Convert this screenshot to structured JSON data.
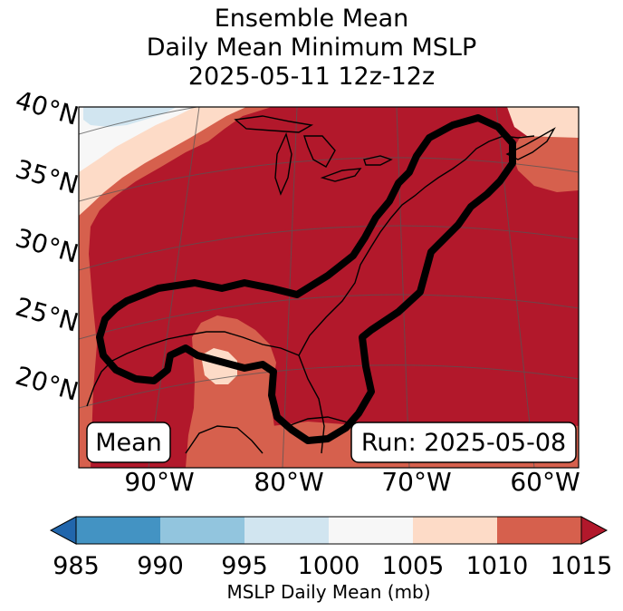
{
  "title": {
    "line1": "Ensemble Mean",
    "line2": "Daily Mean Minimum MSLP",
    "line3": "2025-05-11 12z-12z"
  },
  "map": {
    "lat_labels": [
      "40°N",
      "35°N",
      "30°N",
      "25°N",
      "20°N"
    ],
    "lon_labels": [
      "90°W",
      "80°W",
      "70°W",
      "60°W"
    ],
    "mean_box": "Mean",
    "run_box": "Run: 2025-05-08",
    "contour": "ensemble mean low-pressure track outline"
  },
  "colorbar": {
    "label": "MSLP Daily Mean (mb)",
    "ticks": [
      "985",
      "990",
      "995",
      "1000",
      "1005",
      "1010",
      "1015"
    ],
    "bins": [
      {
        "range": "<985",
        "color": "#2166ac"
      },
      {
        "range": "985-990",
        "color": "#4393c3"
      },
      {
        "range": "990-995",
        "color": "#92c5de"
      },
      {
        "range": "995-1000",
        "color": "#d1e5f0"
      },
      {
        "range": "1000-1005",
        "color": "#f7f7f7"
      },
      {
        "range": "1005-1010",
        "color": "#fddbc7"
      },
      {
        "range": "1010-1015",
        "color": "#d6604d"
      },
      {
        "range": ">1015",
        "color": "#b2182b"
      }
    ]
  }
}
